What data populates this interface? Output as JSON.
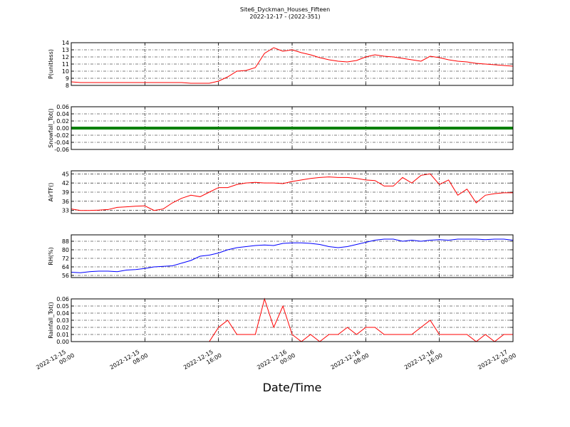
{
  "title": "Site6_Dyckman_Houses_Fifteen",
  "subtitle": "2022-12-17 - (2022-351)",
  "xlabel": "Date/Time",
  "chart_data": [
    {
      "type": "line",
      "ylabel": "P(unitless)",
      "color": "#ff0000",
      "linewidth": 1,
      "grid": true,
      "xlim": [
        "2022-12-15 00:00",
        "2022-12-17 00:00"
      ],
      "ylim": [
        8,
        14
      ],
      "yticks": [
        8,
        9,
        10,
        11,
        12,
        13,
        14
      ],
      "x": [
        "2022-12-15 00:00",
        "2022-12-15 01:00",
        "2022-12-15 02:00",
        "2022-12-15 03:00",
        "2022-12-15 04:00",
        "2022-12-15 05:00",
        "2022-12-15 06:00",
        "2022-12-15 07:00",
        "2022-12-15 08:00",
        "2022-12-15 09:00",
        "2022-12-15 10:00",
        "2022-12-15 11:00",
        "2022-12-15 12:00",
        "2022-12-15 13:00",
        "2022-12-15 14:00",
        "2022-12-15 15:00",
        "2022-12-15 16:00",
        "2022-12-15 17:00",
        "2022-12-15 18:00",
        "2022-12-15 19:00",
        "2022-12-15 20:00",
        "2022-12-15 21:00",
        "2022-12-15 22:00",
        "2022-12-15 23:00",
        "2022-12-16 00:00",
        "2022-12-16 01:00",
        "2022-12-16 02:00",
        "2022-12-16 03:00",
        "2022-12-16 04:00",
        "2022-12-16 05:00",
        "2022-12-16 06:00",
        "2022-12-16 07:00",
        "2022-12-16 08:00",
        "2022-12-16 09:00",
        "2022-12-16 10:00",
        "2022-12-16 11:00",
        "2022-12-16 12:00",
        "2022-12-16 13:00",
        "2022-12-16 14:00",
        "2022-12-16 15:00",
        "2022-12-16 16:00",
        "2022-12-16 17:00",
        "2022-12-16 18:00",
        "2022-12-16 19:00",
        "2022-12-16 20:00",
        "2022-12-16 21:00",
        "2022-12-16 22:00",
        "2022-12-16 23:00",
        "2022-12-17 00:00"
      ],
      "values": [
        8.5,
        8.4,
        8.4,
        8.4,
        8.4,
        8.4,
        8.4,
        8.4,
        8.4,
        8.4,
        8.4,
        8.4,
        8.4,
        8.3,
        8.3,
        8.3,
        8.6,
        9.2,
        10.0,
        10.1,
        10.5,
        12.5,
        13.3,
        12.8,
        13.0,
        12.6,
        12.3,
        11.9,
        11.6,
        11.4,
        11.3,
        11.5,
        12.0,
        12.3,
        12.1,
        12.0,
        11.8,
        11.6,
        11.4,
        12.1,
        11.9,
        11.6,
        11.4,
        11.3,
        11.1,
        11.0,
        10.9,
        10.8,
        10.7
      ]
    },
    {
      "type": "line",
      "ylabel": "Snowfall_Tot()",
      "color": "#008000",
      "linewidth": 4,
      "grid": true,
      "xlim": [
        "2022-12-15 00:00",
        "2022-12-17 00:00"
      ],
      "ylim": [
        -0.06,
        0.06
      ],
      "yticks": [
        -0.06,
        -0.04,
        -0.02,
        {
          "value": 0,
          "label": "0.00"
        },
        0.02,
        0.04,
        0.06
      ],
      "x": [
        "2022-12-15 00:00",
        "2022-12-15 01:00",
        "2022-12-15 02:00",
        "2022-12-15 03:00",
        "2022-12-15 04:00",
        "2022-12-15 05:00",
        "2022-12-15 06:00",
        "2022-12-15 07:00",
        "2022-12-15 08:00",
        "2022-12-15 09:00",
        "2022-12-15 10:00",
        "2022-12-15 11:00",
        "2022-12-15 12:00",
        "2022-12-15 13:00",
        "2022-12-15 14:00",
        "2022-12-15 15:00",
        "2022-12-15 16:00",
        "2022-12-15 17:00",
        "2022-12-15 18:00",
        "2022-12-15 19:00",
        "2022-12-15 20:00",
        "2022-12-15 21:00",
        "2022-12-15 22:00",
        "2022-12-15 23:00",
        "2022-12-16 00:00",
        "2022-12-16 01:00",
        "2022-12-16 02:00",
        "2022-12-16 03:00",
        "2022-12-16 04:00",
        "2022-12-16 05:00",
        "2022-12-16 06:00",
        "2022-12-16 07:00",
        "2022-12-16 08:00",
        "2022-12-16 09:00",
        "2022-12-16 10:00",
        "2022-12-16 11:00",
        "2022-12-16 12:00",
        "2022-12-16 13:00",
        "2022-12-16 14:00",
        "2022-12-16 15:00",
        "2022-12-16 16:00",
        "2022-12-16 17:00",
        "2022-12-16 18:00",
        "2022-12-16 19:00",
        "2022-12-16 20:00",
        "2022-12-16 21:00",
        "2022-12-16 22:00",
        "2022-12-16 23:00",
        "2022-12-17 00:00"
      ],
      "values": [
        0,
        0,
        0,
        0,
        0,
        0,
        0,
        0,
        0,
        0,
        0,
        0,
        0,
        0,
        0,
        0,
        0,
        0,
        0,
        0,
        0,
        0,
        0,
        0,
        0,
        0,
        0,
        0,
        0,
        0,
        0,
        0,
        0,
        0,
        0,
        0,
        0,
        0,
        0,
        0,
        0,
        0,
        0,
        0,
        0,
        0,
        0,
        0,
        0
      ]
    },
    {
      "type": "line",
      "ylabel": "AirTF()",
      "color": "#ff0000",
      "linewidth": 1,
      "grid": true,
      "xlim": [
        "2022-12-15 00:00",
        "2022-12-17 00:00"
      ],
      "ylim": [
        32,
        46
      ],
      "yticks": [
        33,
        36,
        39,
        42,
        45
      ],
      "x": [
        "2022-12-15 00:00",
        "2022-12-15 01:00",
        "2022-12-15 02:00",
        "2022-12-15 03:00",
        "2022-12-15 04:00",
        "2022-12-15 05:00",
        "2022-12-15 06:00",
        "2022-12-15 07:00",
        "2022-12-15 08:00",
        "2022-12-15 09:00",
        "2022-12-15 10:00",
        "2022-12-15 11:00",
        "2022-12-15 12:00",
        "2022-12-15 13:00",
        "2022-12-15 14:00",
        "2022-12-15 15:00",
        "2022-12-15 16:00",
        "2022-12-15 17:00",
        "2022-12-15 18:00",
        "2022-12-15 19:00",
        "2022-12-15 20:00",
        "2022-12-15 21:00",
        "2022-12-15 22:00",
        "2022-12-15 23:00",
        "2022-12-16 00:00",
        "2022-12-16 01:00",
        "2022-12-16 02:00",
        "2022-12-16 03:00",
        "2022-12-16 04:00",
        "2022-12-16 05:00",
        "2022-12-16 06:00",
        "2022-12-16 07:00",
        "2022-12-16 08:00",
        "2022-12-16 09:00",
        "2022-12-16 10:00",
        "2022-12-16 11:00",
        "2022-12-16 12:00",
        "2022-12-16 13:00",
        "2022-12-16 14:00",
        "2022-12-16 15:00",
        "2022-12-16 16:00",
        "2022-12-16 17:00",
        "2022-12-16 18:00",
        "2022-12-16 19:00",
        "2022-12-16 20:00",
        "2022-12-16 21:00",
        "2022-12-16 22:00",
        "2022-12-16 23:00",
        "2022-12-17 00:00"
      ],
      "values": [
        33.5,
        33.0,
        33.0,
        33.1,
        33.3,
        34.0,
        34.2,
        34.4,
        34.5,
        33.0,
        33.5,
        35.5,
        37.0,
        38.0,
        37.5,
        39.0,
        40.5,
        40.5,
        41.5,
        42.0,
        42.2,
        42.0,
        42.0,
        41.8,
        42.5,
        43.0,
        43.5,
        43.8,
        44.0,
        43.8,
        43.8,
        43.5,
        43.0,
        42.8,
        41.0,
        41.0,
        43.8,
        42.0,
        44.5,
        45.0,
        41.5,
        43.0,
        38.0,
        40.0,
        35.5,
        38.0,
        38.5,
        38.8,
        38.8
      ]
    },
    {
      "type": "line",
      "ylabel": "RH(%)",
      "color": "#0000ff",
      "linewidth": 1,
      "grid": true,
      "xlim": [
        "2022-12-15 00:00",
        "2022-12-17 00:00"
      ],
      "ylim": [
        54,
        94
      ],
      "yticks": [
        56,
        64,
        72,
        80,
        88
      ],
      "x": [
        "2022-12-15 00:00",
        "2022-12-15 01:00",
        "2022-12-15 02:00",
        "2022-12-15 03:00",
        "2022-12-15 04:00",
        "2022-12-15 05:00",
        "2022-12-15 06:00",
        "2022-12-15 07:00",
        "2022-12-15 08:00",
        "2022-12-15 09:00",
        "2022-12-15 10:00",
        "2022-12-15 11:00",
        "2022-12-15 12:00",
        "2022-12-15 13:00",
        "2022-12-15 14:00",
        "2022-12-15 15:00",
        "2022-12-15 16:00",
        "2022-12-15 17:00",
        "2022-12-15 18:00",
        "2022-12-15 19:00",
        "2022-12-15 20:00",
        "2022-12-15 21:00",
        "2022-12-15 22:00",
        "2022-12-15 23:00",
        "2022-12-16 00:00",
        "2022-12-16 01:00",
        "2022-12-16 02:00",
        "2022-12-16 03:00",
        "2022-12-16 04:00",
        "2022-12-16 05:00",
        "2022-12-16 06:00",
        "2022-12-16 07:00",
        "2022-12-16 08:00",
        "2022-12-16 09:00",
        "2022-12-16 10:00",
        "2022-12-16 11:00",
        "2022-12-16 12:00",
        "2022-12-16 13:00",
        "2022-12-16 14:00",
        "2022-12-16 15:00",
        "2022-12-16 16:00",
        "2022-12-16 17:00",
        "2022-12-16 18:00",
        "2022-12-16 19:00",
        "2022-12-16 20:00",
        "2022-12-16 21:00",
        "2022-12-16 22:00",
        "2022-12-16 23:00",
        "2022-12-17 00:00"
      ],
      "values": [
        59,
        58.5,
        59.5,
        60,
        60,
        59.5,
        61,
        61.5,
        62.5,
        64,
        64.5,
        65,
        67.5,
        70,
        74,
        75,
        77,
        80,
        82,
        83,
        84,
        84.5,
        84,
        86,
        86.5,
        86.5,
        86,
        85,
        83,
        82,
        83,
        85,
        87,
        89,
        90,
        90,
        88,
        89,
        88,
        89,
        89.5,
        89,
        90,
        90,
        90,
        89.5,
        90,
        90,
        89
      ]
    },
    {
      "type": "line",
      "ylabel": "Rainfall_Tot()",
      "color": "#ff0000",
      "linewidth": 1,
      "grid": true,
      "xlim": [
        "2022-12-15 00:00",
        "2022-12-17 00:00"
      ],
      "ylim": [
        0,
        0.06
      ],
      "yticks": [
        {
          "value": 0,
          "label": "0.00"
        },
        0.01,
        0.02,
        0.03,
        0.04,
        0.05,
        0.06
      ],
      "xticks": [
        "2022-12-15 00:00",
        "2022-12-15 08:00",
        "2022-12-15 16:00",
        "2022-12-16 00:00",
        "2022-12-16 08:00",
        "2022-12-16 16:00",
        "2022-12-17 00:00"
      ],
      "x": [
        "2022-12-15 00:00",
        "2022-12-15 01:00",
        "2022-12-15 02:00",
        "2022-12-15 03:00",
        "2022-12-15 04:00",
        "2022-12-15 05:00",
        "2022-12-15 06:00",
        "2022-12-15 07:00",
        "2022-12-15 08:00",
        "2022-12-15 09:00",
        "2022-12-15 10:00",
        "2022-12-15 11:00",
        "2022-12-15 12:00",
        "2022-12-15 13:00",
        "2022-12-15 14:00",
        "2022-12-15 15:00",
        "2022-12-15 16:00",
        "2022-12-15 17:00",
        "2022-12-15 18:00",
        "2022-12-15 19:00",
        "2022-12-15 20:00",
        "2022-12-15 21:00",
        "2022-12-15 22:00",
        "2022-12-15 23:00",
        "2022-12-16 00:00",
        "2022-12-16 01:00",
        "2022-12-16 02:00",
        "2022-12-16 03:00",
        "2022-12-16 04:00",
        "2022-12-16 05:00",
        "2022-12-16 06:00",
        "2022-12-16 07:00",
        "2022-12-16 08:00",
        "2022-12-16 09:00",
        "2022-12-16 10:00",
        "2022-12-16 11:00",
        "2022-12-16 12:00",
        "2022-12-16 13:00",
        "2022-12-16 14:00",
        "2022-12-16 15:00",
        "2022-12-16 16:00",
        "2022-12-16 17:00",
        "2022-12-16 18:00",
        "2022-12-16 19:00",
        "2022-12-16 20:00",
        "2022-12-16 21:00",
        "2022-12-16 22:00",
        "2022-12-16 23:00",
        "2022-12-17 00:00"
      ],
      "values": [
        0,
        0,
        0,
        0,
        0,
        0,
        0,
        0,
        0,
        0,
        0,
        0,
        0,
        0,
        0,
        0,
        0.02,
        0.03,
        0.01,
        0.01,
        0.01,
        0.06,
        0.02,
        0.05,
        0.01,
        0,
        0.01,
        0,
        0.01,
        0.01,
        0.02,
        0.01,
        0.02,
        0.02,
        0.01,
        0.01,
        0.01,
        0.01,
        0.02,
        0.03,
        0.01,
        0.01,
        0.01,
        0.01,
        0,
        0.01,
        0,
        0.01,
        0.01
      ]
    }
  ]
}
